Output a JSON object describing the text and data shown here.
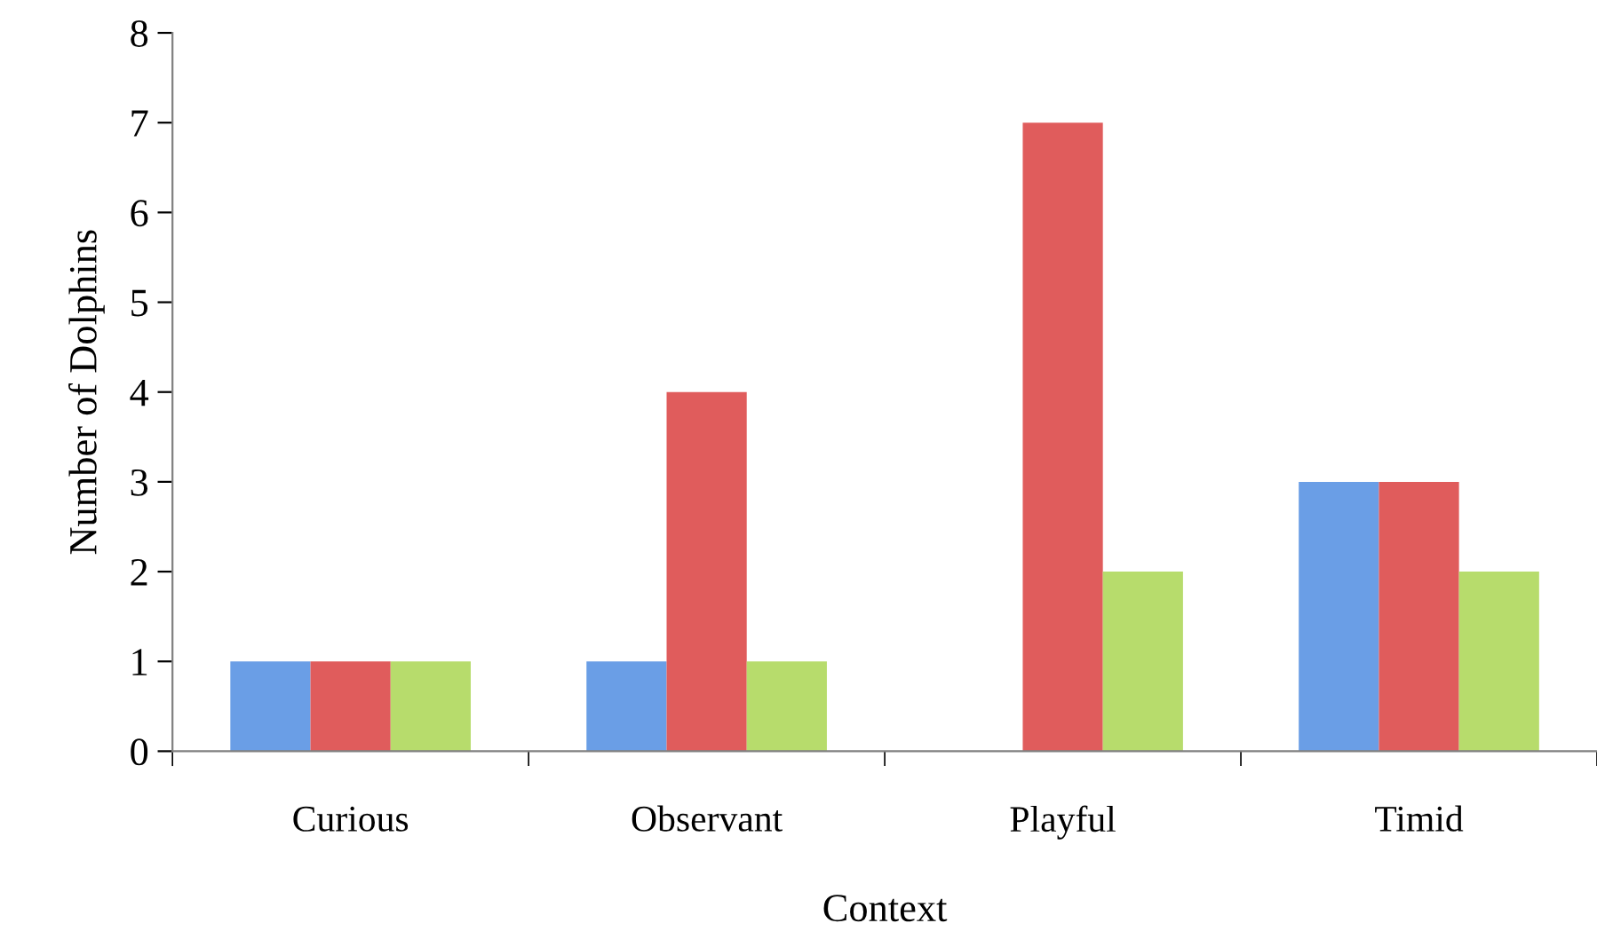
{
  "chart_data": {
    "type": "bar",
    "xlabel": "Context",
    "ylabel": "Number of Dolphins",
    "categories": [
      "Curious",
      "Observant",
      "Playful",
      "Timid"
    ],
    "series": [
      {
        "color": "#6a9ee6",
        "values": [
          1,
          1,
          0,
          3
        ]
      },
      {
        "color": "#e05c5c",
        "values": [
          1,
          4,
          7,
          3
        ]
      },
      {
        "color": "#b7dc6c",
        "values": [
          1,
          1,
          2,
          2
        ]
      }
    ],
    "ylim": [
      0,
      8
    ],
    "yticks": [
      0,
      1,
      2,
      3,
      4,
      5,
      6,
      7,
      8
    ],
    "grid": false,
    "legend": false
  }
}
